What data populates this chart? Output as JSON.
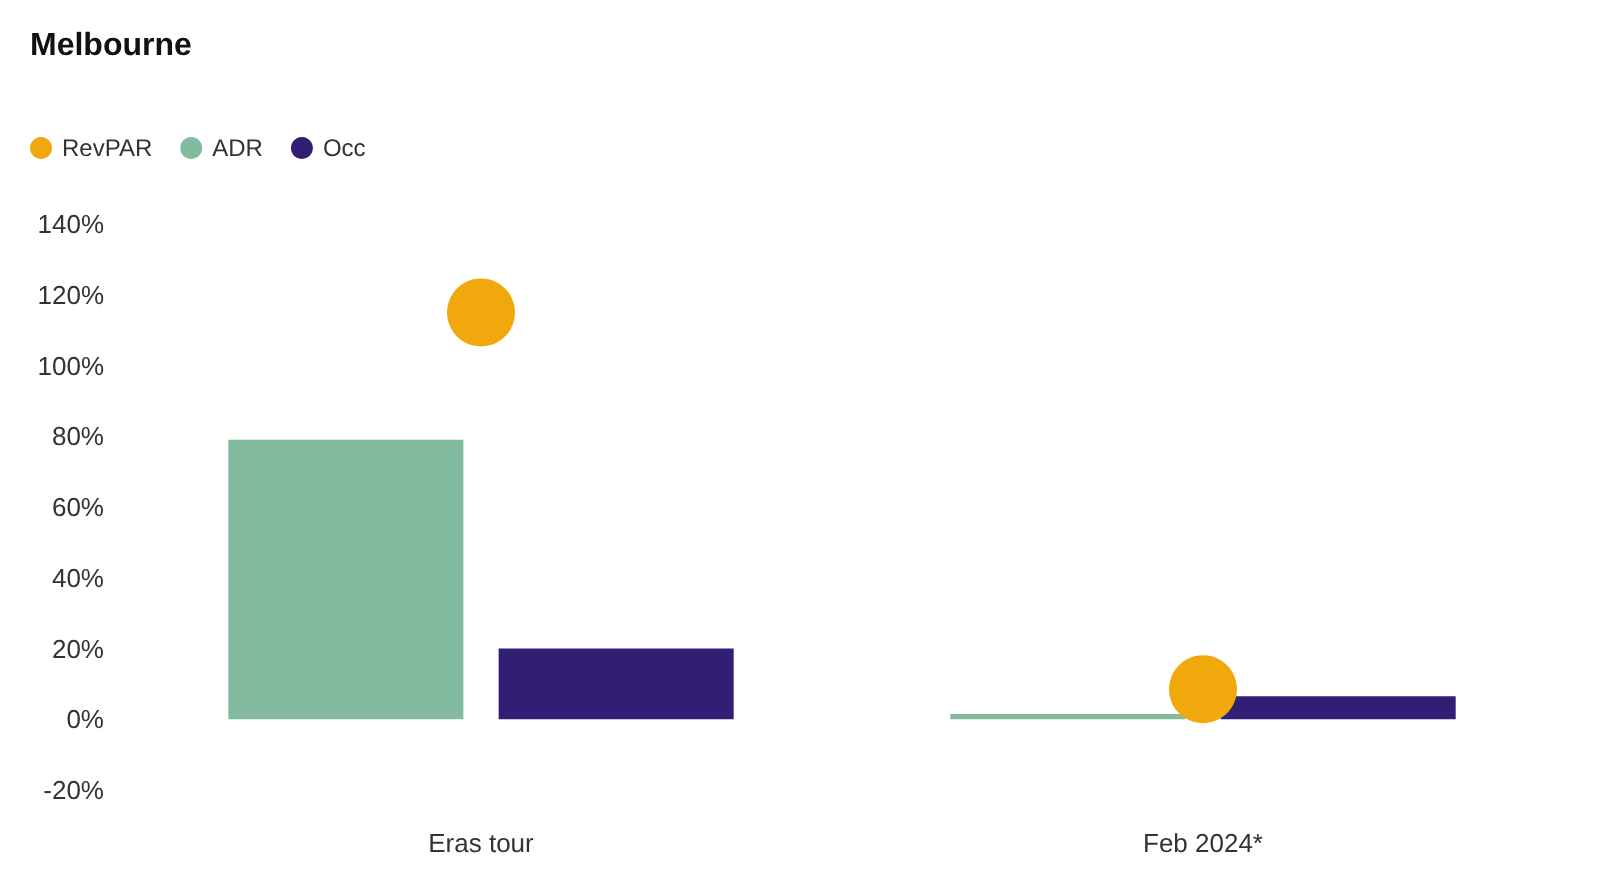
{
  "chart_data": {
    "type": "bar",
    "title": "Melbourne",
    "categories": [
      "Eras tour",
      "Feb 2024*"
    ],
    "series": [
      {
        "name": "RevPAR",
        "type": "scatter",
        "color": "#f0a80d",
        "x": [
          "Eras tour",
          "Feb 2024*"
        ],
        "values": [
          115,
          8.5
        ]
      },
      {
        "name": "ADR",
        "color": "#83bba1",
        "values": [
          79,
          1.5
        ]
      },
      {
        "name": "Occ",
        "color": "#331e76",
        "values": [
          20,
          6.5
        ]
      }
    ],
    "ylim": [
      -20,
      140
    ],
    "yticks": [
      {
        "value": -20,
        "label": "-20%"
      },
      {
        "value": 0,
        "label": "0%"
      },
      {
        "value": 20,
        "label": "20%"
      },
      {
        "value": 40,
        "label": "40%"
      },
      {
        "value": 60,
        "label": "60%"
      },
      {
        "value": 80,
        "label": "80%"
      },
      {
        "value": 100,
        "label": "100%"
      },
      {
        "value": 120,
        "label": "120%"
      },
      {
        "value": 140,
        "label": "140%"
      }
    ],
    "grid": false,
    "legend": "top left",
    "marker": "circle"
  }
}
